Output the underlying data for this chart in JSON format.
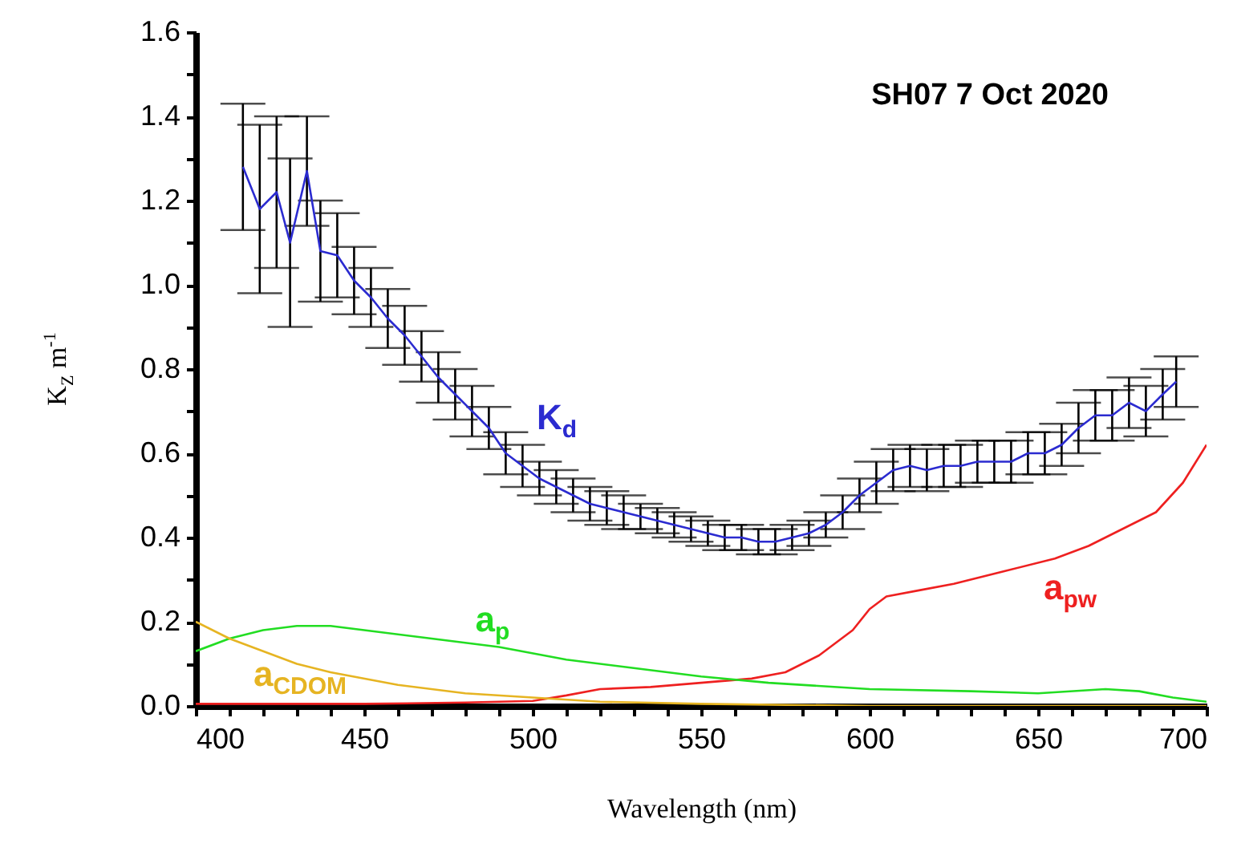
{
  "chart_data": {
    "type": "line",
    "title": "SH07 7 Oct 2020",
    "xlabel": "Wavelength (nm)",
    "ylabel": "K$_{Z}$ m$^{-1}$",
    "xlim": [
      400,
      700
    ],
    "ylim": [
      0,
      1.6
    ],
    "xticks": [
      400,
      {
        "value": 410,
        "label": null
      },
      {
        "value": 420,
        "label": null
      },
      {
        "value": 430,
        "label": null
      },
      {
        "value": 440,
        "label": null
      },
      450,
      {
        "value": 460,
        "label": null
      },
      {
        "value": 470,
        "label": null
      },
      {
        "value": 480,
        "label": null
      },
      {
        "value": 490,
        "label": null
      },
      500,
      {
        "value": 510,
        "label": null
      },
      {
        "value": 520,
        "label": null
      },
      {
        "value": 530,
        "label": null
      },
      {
        "value": 540,
        "label": null
      },
      550,
      {
        "value": 560,
        "label": null
      },
      {
        "value": 570,
        "label": null
      },
      {
        "value": 580,
        "label": null
      },
      {
        "value": 590,
        "label": null
      },
      600,
      {
        "value": 610,
        "label": null
      },
      {
        "value": 620,
        "label": null
      },
      {
        "value": 630,
        "label": null
      },
      {
        "value": 640,
        "label": null
      },
      650,
      {
        "value": 660,
        "label": null
      },
      {
        "value": 670,
        "label": null
      },
      {
        "value": 680,
        "label": null
      },
      {
        "value": 690,
        "label": null
      },
      700
    ],
    "yticks": [
      {
        "value": 0,
        "label": "0.0"
      },
      {
        "value": 0.1,
        "label": null
      },
      {
        "value": 0.2,
        "label": "0.2"
      },
      {
        "value": 0.3,
        "label": null
      },
      {
        "value": 0.4,
        "label": "0.4"
      },
      {
        "value": 0.5,
        "label": null
      },
      {
        "value": 0.6,
        "label": "0.6"
      },
      {
        "value": 0.7,
        "label": null
      },
      {
        "value": 0.8,
        "label": "0.8"
      },
      {
        "value": 0.9,
        "label": null
      },
      {
        "value": 1.0,
        "label": "1.0"
      },
      {
        "value": 1.1,
        "label": null
      },
      {
        "value": 1.2,
        "label": "1.2"
      },
      {
        "value": 1.3,
        "label": null
      },
      {
        "value": 1.4,
        "label": "1.4"
      },
      {
        "value": 1.5,
        "label": null
      },
      {
        "value": 1.6,
        "label": "1.6"
      }
    ],
    "series": [
      {
        "color": "#2b2bd0",
        "x": [
          414,
          419,
          424,
          428,
          433,
          437,
          442,
          447,
          452,
          457,
          462,
          467,
          472,
          477,
          482,
          487,
          492,
          497,
          502,
          507,
          512,
          517,
          522,
          527,
          532,
          537,
          542,
          547,
          552,
          557,
          562,
          567,
          572,
          577,
          582,
          587,
          592,
          597,
          602,
          607,
          612,
          617,
          622,
          627,
          632,
          637,
          642,
          647,
          652,
          657,
          662,
          667,
          672,
          677,
          682,
          687,
          691
        ],
        "values": [
          1.28,
          1.18,
          1.22,
          1.1,
          1.27,
          1.08,
          1.07,
          1.01,
          0.97,
          0.92,
          0.88,
          0.83,
          0.78,
          0.74,
          0.7,
          0.66,
          0.6,
          0.57,
          0.54,
          0.52,
          0.5,
          0.48,
          0.47,
          0.46,
          0.45,
          0.44,
          0.43,
          0.42,
          0.41,
          0.4,
          0.4,
          0.39,
          0.39,
          0.4,
          0.41,
          0.43,
          0.46,
          0.5,
          0.53,
          0.56,
          0.57,
          0.56,
          0.57,
          0.57,
          0.58,
          0.58,
          0.58,
          0.6,
          0.6,
          0.62,
          0.66,
          0.69,
          0.69,
          0.72,
          0.7,
          0.74,
          0.77
        ],
        "errors": [
          0.15,
          0.2,
          0.18,
          0.2,
          0.13,
          0.12,
          0.1,
          0.08,
          0.07,
          0.07,
          0.07,
          0.06,
          0.06,
          0.06,
          0.06,
          0.05,
          0.05,
          0.05,
          0.04,
          0.04,
          0.04,
          0.04,
          0.04,
          0.04,
          0.03,
          0.03,
          0.03,
          0.03,
          0.03,
          0.03,
          0.03,
          0.03,
          0.03,
          0.03,
          0.03,
          0.03,
          0.04,
          0.04,
          0.05,
          0.05,
          0.05,
          0.05,
          0.05,
          0.05,
          0.05,
          0.05,
          0.05,
          0.05,
          0.05,
          0.05,
          0.06,
          0.06,
          0.06,
          0.06,
          0.06,
          0.06,
          0.06
        ]
      },
      {
        "color": "#ee2020",
        "x": [
          400,
          450,
          480,
          500,
          510,
          520,
          535,
          550,
          565,
          575,
          585,
          595,
          600,
          605,
          615,
          625,
          640,
          655,
          665,
          675,
          685,
          693,
          700
        ],
        "values": [
          0.005,
          0.005,
          0.008,
          0.012,
          0.025,
          0.04,
          0.045,
          0.055,
          0.065,
          0.08,
          0.12,
          0.18,
          0.23,
          0.26,
          0.275,
          0.29,
          0.32,
          0.35,
          0.38,
          0.42,
          0.46,
          0.53,
          0.62
        ]
      },
      {
        "color": "#22dd22",
        "x": [
          400,
          410,
          420,
          430,
          440,
          450,
          470,
          490,
          510,
          530,
          550,
          570,
          600,
          630,
          650,
          670,
          680,
          690,
          700
        ],
        "values": [
          0.13,
          0.16,
          0.18,
          0.19,
          0.19,
          0.18,
          0.16,
          0.14,
          0.11,
          0.09,
          0.07,
          0.055,
          0.04,
          0.035,
          0.03,
          0.04,
          0.035,
          0.02,
          0.01
        ]
      },
      {
        "color": "#e6b422",
        "x": [
          400,
          410,
          420,
          430,
          440,
          460,
          480,
          500,
          520,
          550,
          600,
          700
        ],
        "values": [
          0.2,
          0.16,
          0.13,
          0.1,
          0.08,
          0.05,
          0.03,
          0.02,
          0.01,
          0.005,
          0,
          0
        ]
      }
    ],
    "annotations": [
      "K$_{d}$",
      "a$_{pw}$",
      "a$_{p}$",
      "a$_{CDOM}$"
    ]
  }
}
